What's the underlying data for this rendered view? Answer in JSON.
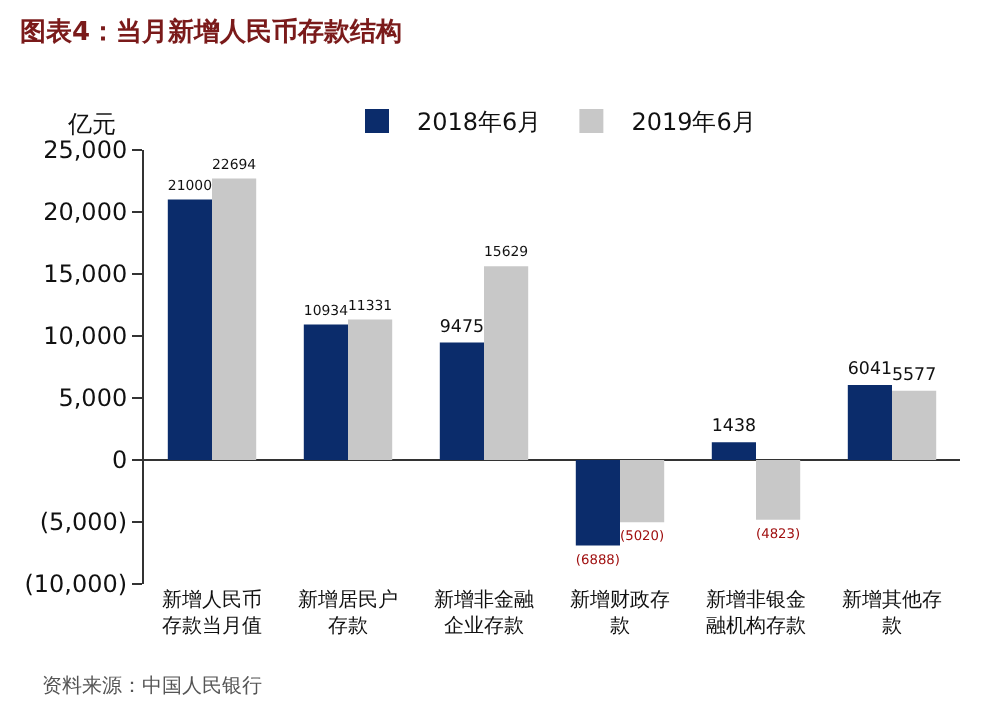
{
  "chart_data": {
    "type": "bar",
    "title": "图表4：当月新增人民币存款结构",
    "ylabel": "亿元",
    "categories": [
      "新增人民币存款当月值",
      "新增居民户存款",
      "新增非金融企业存款",
      "新增财政存款",
      "新增非银金融机构存款",
      "新增其他存款"
    ],
    "series": [
      {
        "name": "2018年6月",
        "color": "#0b2c6b",
        "values": [
          21000,
          10934,
          9475,
          -6888,
          1438,
          6041
        ],
        "value_labels": [
          "21000",
          "10934",
          "9475",
          "(6888)",
          "1438",
          "6041"
        ]
      },
      {
        "name": "2019年6月",
        "color": "#c8c8c8",
        "values": [
          22694,
          11331,
          15629,
          -5020,
          -4823,
          5577
        ],
        "value_labels": [
          "22694",
          "11331",
          "15629",
          "(5020)",
          "(4823)",
          "5577"
        ]
      }
    ],
    "ylim": [
      -10000,
      25000
    ],
    "yticks": [
      {
        "value": -10000,
        "label": "(10,000)"
      },
      {
        "value": -5000,
        "label": "(5,000)"
      },
      0,
      {
        "value": 5000,
        "label": "5,000"
      },
      {
        "value": 10000,
        "label": "10,000"
      },
      {
        "value": 15000,
        "label": "15,000"
      },
      {
        "value": 20000,
        "label": "20,000"
      },
      {
        "value": 25000,
        "label": "25,000"
      }
    ],
    "legend": "top",
    "annotations": [
      "资料来源：中国人民银行"
    ]
  }
}
